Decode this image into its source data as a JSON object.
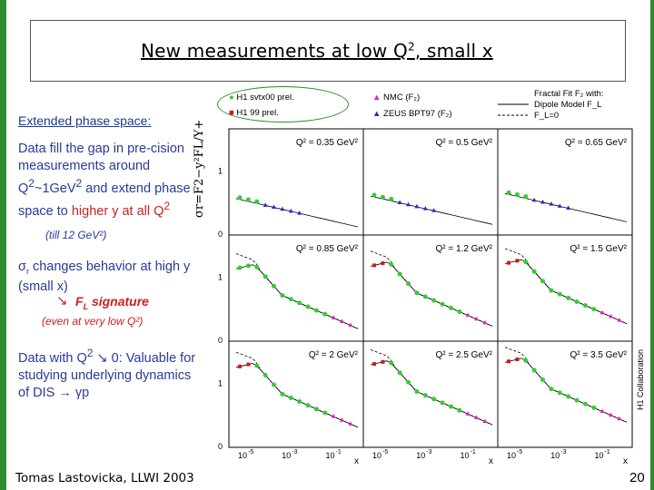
{
  "title": {
    "main": "New measurements at low Q",
    "sup": "2",
    "rest": ", small x"
  },
  "left": {
    "header": "Extended phase space:",
    "p1_a": "Data fill the gap in pre-cision measurements around Q",
    "p1_b": "2",
    "p1_c": "~1GeV",
    "p1_d": "2",
    "p1_e": " and extend phase space ",
    "p1_to": "to ",
    "p1_red": "higher y at all Q",
    "p1_red_sup": "2",
    "p1_small": "(till 12 GeV²)",
    "p2_sigma": "σ",
    "p2_sub": "r",
    "p2_text": " changes behavior at high y (small x)",
    "p2_arrow": "↘",
    "p2_fl": "F",
    "p2_fl_sub": "L",
    "p2_fl_text": " signature",
    "p2_small": "(even at very low Q²)",
    "p3_a": "Data with Q",
    "p3_sup": "2",
    "p3_b": " ↘ 0: Valuable for studying underlying dynamics of  DIS → γp"
  },
  "footer": {
    "author": "Tomas Lastovicka, LLWI 2003",
    "page": "20"
  },
  "collaboration": "H1 Collaboration",
  "y_axis_label": "σr=F2−y²FL/Y+",
  "legend": {
    "h1_svtx": "H1 svtx00 prel.",
    "h1_99": "H1 99 prel.",
    "nmc": "NMC (F₂)",
    "zeus": "ZEUS BPT97 (F₂)",
    "fit_title": "Fractal Fit F₂ with:",
    "fit_dipole": "Dipole Model F_L",
    "fit_fl0": "F_L=0"
  },
  "colors": {
    "h1_svtx": "#33cc33",
    "h1_99": "#cc1a1a",
    "nmc": "#e020c0",
    "zeus": "#2030c0",
    "accent_green": "#2e8b2e"
  },
  "chart_data": {
    "type": "scatter",
    "panels": [
      {
        "label": "Q² = 0.35 GeV²",
        "ymax": "1",
        "series": [
          "h1_svtx",
          "zeus"
        ]
      },
      {
        "label": "Q² = 0.5 GeV²",
        "ymax": "",
        "series": [
          "h1_svtx",
          "zeus"
        ]
      },
      {
        "label": "Q² = 0.65 GeV²",
        "ymax": "",
        "series": [
          "h1_svtx",
          "zeus"
        ]
      },
      {
        "label": "Q² = 0.85 GeV²",
        "ymax": "1",
        "series": [
          "h1_svtx",
          "nmc"
        ]
      },
      {
        "label": "Q² = 1.2 GeV²",
        "ymax": "",
        "series": [
          "h1_svtx",
          "h1_99",
          "nmc"
        ]
      },
      {
        "label": "Q² = 1.5 GeV²",
        "ymax": "",
        "series": [
          "h1_svtx",
          "h1_99",
          "nmc"
        ]
      },
      {
        "label": "Q² = 2 GeV²",
        "ymax": "1",
        "series": [
          "h1_svtx",
          "h1_99",
          "nmc"
        ]
      },
      {
        "label": "Q² = 2.5 GeV²",
        "ymax": "",
        "series": [
          "h1_svtx",
          "h1_99",
          "nmc"
        ]
      },
      {
        "label": "Q² = 3.5 GeV²",
        "ymax": "",
        "series": [
          "h1_svtx",
          "h1_99",
          "nmc"
        ]
      }
    ],
    "y_ticks": [
      "0",
      "1"
    ],
    "x_ticks": [
      "10",
      "-5",
      "10",
      "-3",
      "10",
      "-1"
    ],
    "x_label": "x",
    "ylim": [
      0,
      1.6
    ]
  }
}
